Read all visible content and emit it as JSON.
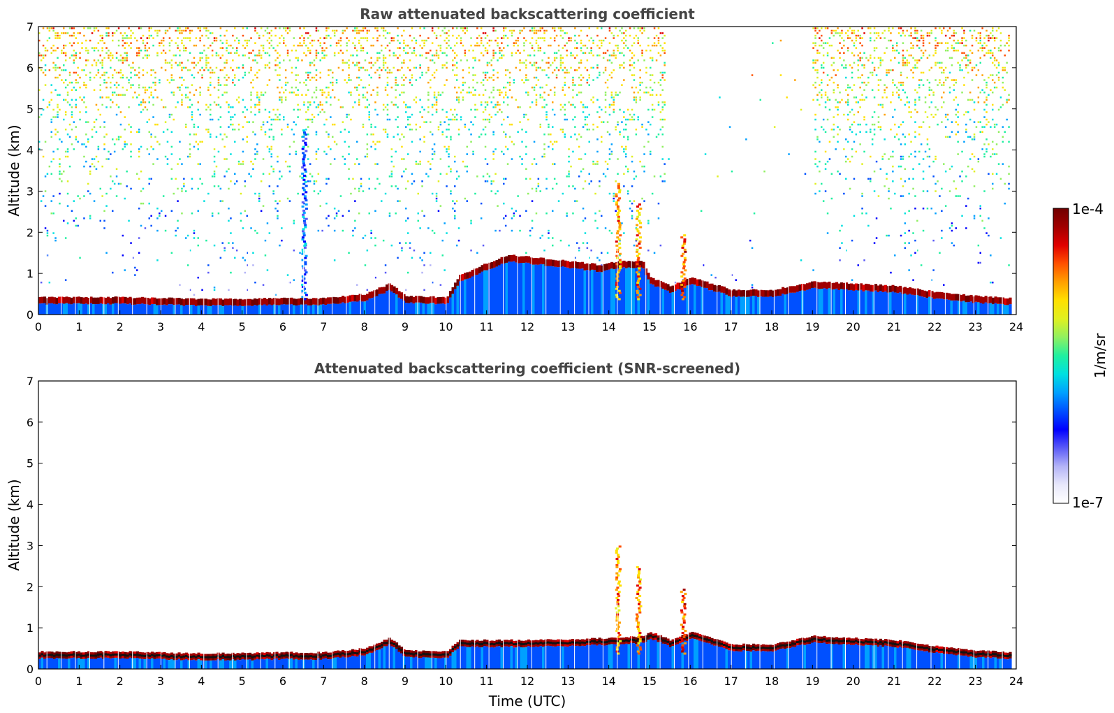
{
  "colormap_stops": [
    "#ffffff",
    "#e8e8fb",
    "#b4b4f7",
    "#5a5af7",
    "#0000ff",
    "#0050ff",
    "#00a0ff",
    "#00e0e0",
    "#20f0a0",
    "#90f060",
    "#e0f020",
    "#ffe000",
    "#ffa000",
    "#ff5000",
    "#e00000",
    "#a00000",
    "#700000"
  ],
  "chart_data": [
    {
      "type": "heatmap",
      "title": "Raw attenuated backscattering coefficient",
      "xlabel": "",
      "ylabel": "Altitude (km)",
      "xlim": [
        0,
        24
      ],
      "ylim": [
        0,
        7
      ],
      "x_ticks": [
        "0",
        "1",
        "2",
        "3",
        "4",
        "5",
        "6",
        "7",
        "8",
        "9",
        "10",
        "11",
        "12",
        "13",
        "14",
        "15",
        "16",
        "17",
        "18",
        "19",
        "20",
        "21",
        "22",
        "23",
        "24"
      ],
      "y_ticks": [
        "0",
        "1",
        "2",
        "3",
        "4",
        "5",
        "6",
        "7"
      ],
      "grid": false,
      "screened": false,
      "layer_top_km": [
        [
          0,
          0.42
        ],
        [
          1,
          0.42
        ],
        [
          2,
          0.42
        ],
        [
          3,
          0.4
        ],
        [
          4,
          0.38
        ],
        [
          5,
          0.38
        ],
        [
          6,
          0.4
        ],
        [
          7,
          0.4
        ],
        [
          8,
          0.5
        ],
        [
          8.6,
          0.75
        ],
        [
          9,
          0.45
        ],
        [
          10,
          0.42
        ],
        [
          10.3,
          0.95
        ],
        [
          11,
          1.25
        ],
        [
          11.5,
          1.45
        ],
        [
          12,
          1.4
        ],
        [
          13,
          1.3
        ],
        [
          13.8,
          1.2
        ],
        [
          14.2,
          1.3
        ],
        [
          14.8,
          1.3
        ],
        [
          15,
          0.9
        ],
        [
          15.5,
          0.7
        ],
        [
          16,
          0.9
        ],
        [
          17,
          0.6
        ],
        [
          18,
          0.6
        ],
        [
          19,
          0.8
        ],
        [
          20,
          0.75
        ],
        [
          21,
          0.7
        ],
        [
          22,
          0.55
        ],
        [
          23,
          0.45
        ],
        [
          23.85,
          0.4
        ]
      ],
      "plumes": [
        {
          "time": 6.5,
          "top_km": 4.5,
          "intensity": 0.3
        },
        {
          "time": 14.2,
          "top_km": 3.2,
          "intensity": 0.75
        },
        {
          "time": 14.7,
          "top_km": 2.7,
          "intensity": 0.75
        },
        {
          "time": 15.8,
          "top_km": 2.0,
          "intensity": 0.8
        }
      ]
    },
    {
      "type": "heatmap",
      "title": "Attenuated backscattering coefficient (SNR-screened)",
      "xlabel": "Time (UTC)",
      "ylabel": "Altitude (km)",
      "xlim": [
        0,
        24
      ],
      "ylim": [
        0,
        7
      ],
      "x_ticks": [
        "0",
        "1",
        "2",
        "3",
        "4",
        "5",
        "6",
        "7",
        "8",
        "9",
        "10",
        "11",
        "12",
        "13",
        "14",
        "15",
        "16",
        "17",
        "18",
        "19",
        "20",
        "21",
        "22",
        "23",
        "24"
      ],
      "y_ticks": [
        "0",
        "1",
        "2",
        "3",
        "4",
        "5",
        "6",
        "7"
      ],
      "grid": false,
      "screened": true,
      "layer_top_km": [
        [
          0,
          0.42
        ],
        [
          1,
          0.42
        ],
        [
          2,
          0.42
        ],
        [
          3,
          0.4
        ],
        [
          4,
          0.38
        ],
        [
          5,
          0.38
        ],
        [
          6,
          0.4
        ],
        [
          7,
          0.4
        ],
        [
          8,
          0.5
        ],
        [
          8.6,
          0.75
        ],
        [
          9,
          0.45
        ],
        [
          10,
          0.42
        ],
        [
          10.3,
          0.7
        ],
        [
          11,
          0.7
        ],
        [
          12,
          0.7
        ],
        [
          13,
          0.72
        ],
        [
          14,
          0.75
        ],
        [
          14.8,
          0.8
        ],
        [
          15,
          0.9
        ],
        [
          15.5,
          0.7
        ],
        [
          16,
          0.9
        ],
        [
          17,
          0.6
        ],
        [
          18,
          0.6
        ],
        [
          19,
          0.8
        ],
        [
          20,
          0.75
        ],
        [
          21,
          0.7
        ],
        [
          22,
          0.55
        ],
        [
          23,
          0.45
        ],
        [
          23.85,
          0.4
        ]
      ],
      "plumes": [
        {
          "time": 14.2,
          "top_km": 3.0,
          "intensity": 0.75
        },
        {
          "time": 14.7,
          "top_km": 2.5,
          "intensity": 0.75
        },
        {
          "time": 15.8,
          "top_km": 2.0,
          "intensity": 0.8
        }
      ]
    }
  ],
  "colorbar": {
    "label": "1/m/sr",
    "max_label": "1e-4",
    "min_label": "1e-7",
    "scale": "log",
    "range": [
      1e-07,
      0.0001
    ]
  }
}
